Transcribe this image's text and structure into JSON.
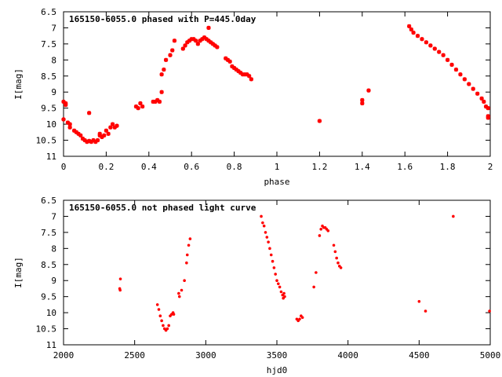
{
  "colors": {
    "series": "#ff0000",
    "axis": "#000000",
    "background": "#ffffff"
  },
  "chart_data": [
    {
      "type": "scatter",
      "title": "165150-6055.0 phased with P=445.0day",
      "xlabel": "phase",
      "ylabel": "I[mag]",
      "xlim": [
        0,
        2
      ],
      "ylim": [
        6.5,
        11
      ],
      "y_inverted": true,
      "x_ticks": [
        0,
        0.2,
        0.4,
        0.6,
        0.8,
        1,
        1.2,
        1.4,
        1.6,
        1.8,
        2
      ],
      "x_tick_labels": [
        "0",
        "0.2",
        "0.4",
        "0.6",
        "0.8",
        "1",
        "1.2",
        "1.4",
        "1.6",
        "1.8",
        "2"
      ],
      "y_ticks": [
        6.5,
        7,
        7.5,
        8,
        8.5,
        9,
        9.5,
        10,
        10.5,
        11
      ],
      "y_tick_labels": [
        "6.5",
        "7",
        "7.5",
        "8",
        "8.5",
        "9",
        "9.5",
        "10",
        "10.5",
        "11"
      ],
      "grid": false,
      "marker": "star",
      "x": [
        0.0,
        0.0,
        0.01,
        0.01,
        0.02,
        0.03,
        0.03,
        0.05,
        0.06,
        0.07,
        0.08,
        0.09,
        0.1,
        0.11,
        0.12,
        0.13,
        0.14,
        0.15,
        0.16,
        0.17,
        0.17,
        0.18,
        0.19,
        0.2,
        0.21,
        0.22,
        0.23,
        0.24,
        0.25,
        0.12,
        0.34,
        0.35,
        0.36,
        0.37,
        0.42,
        0.43,
        0.44,
        0.45,
        0.46,
        0.46,
        0.47,
        0.48,
        0.5,
        0.51,
        0.52,
        0.56,
        0.57,
        0.58,
        0.59,
        0.6,
        0.61,
        0.62,
        0.63,
        0.64,
        0.65,
        0.66,
        0.67,
        0.68,
        0.69,
        0.7,
        0.71,
        0.72,
        0.68,
        0.76,
        0.77,
        0.78,
        0.79,
        0.8,
        0.81,
        0.82,
        0.83,
        0.84,
        0.85,
        0.86,
        0.87,
        0.88,
        1.2,
        1.4,
        1.4,
        1.43,
        1.62,
        1.63,
        1.64,
        1.66,
        1.68,
        1.7,
        1.72,
        1.74,
        1.76,
        1.78,
        1.8,
        1.82,
        1.84,
        1.86,
        1.88,
        1.9,
        1.92,
        1.94,
        1.96,
        1.97,
        1.98,
        1.99,
        1.99,
        1.99
      ],
      "y": [
        9.3,
        9.85,
        9.35,
        9.4,
        9.95,
        10.0,
        10.1,
        10.2,
        10.25,
        10.3,
        10.35,
        10.45,
        10.5,
        10.55,
        10.52,
        10.55,
        10.5,
        10.55,
        10.5,
        10.35,
        10.3,
        10.4,
        10.35,
        10.2,
        10.3,
        10.1,
        10.0,
        10.1,
        10.05,
        9.65,
        9.45,
        9.5,
        9.35,
        9.45,
        9.3,
        9.3,
        9.25,
        9.3,
        8.45,
        9.0,
        8.3,
        8.0,
        7.85,
        7.7,
        7.4,
        7.65,
        7.55,
        7.45,
        7.4,
        7.35,
        7.35,
        7.4,
        7.5,
        7.4,
        7.35,
        7.3,
        7.35,
        7.4,
        7.45,
        7.5,
        7.55,
        7.6,
        7.0,
        7.95,
        8.0,
        8.05,
        8.2,
        8.25,
        8.3,
        8.35,
        8.4,
        8.45,
        8.45,
        8.45,
        8.5,
        8.6,
        9.9,
        9.25,
        9.35,
        8.95,
        6.95,
        7.05,
        7.15,
        7.25,
        7.35,
        7.45,
        7.55,
        7.65,
        7.75,
        7.85,
        8.0,
        8.15,
        8.3,
        8.45,
        8.6,
        8.75,
        8.9,
        9.05,
        9.2,
        9.3,
        9.45,
        9.5,
        9.75,
        9.8
      ]
    },
    {
      "type": "scatter",
      "title": "165150-6055.0 not phased light curve",
      "xlabel": "hjd0",
      "ylabel": "I[mag]",
      "xlim": [
        2000,
        5000
      ],
      "ylim": [
        6.5,
        11
      ],
      "y_inverted": true,
      "x_ticks": [
        2000,
        2500,
        3000,
        3500,
        4000,
        4500,
        5000
      ],
      "x_tick_labels": [
        "2000",
        "2500",
        "3000",
        "3500",
        "4000",
        "4500",
        "5000"
      ],
      "y_ticks": [
        6.5,
        7,
        7.5,
        8,
        8.5,
        9,
        9.5,
        10,
        10.5,
        11
      ],
      "y_tick_labels": [
        "6.5",
        "7",
        "7.5",
        "8",
        "8.5",
        "9",
        "9.5",
        "10",
        "10.5",
        "11"
      ],
      "grid": false,
      "marker": "dot",
      "x": [
        2395,
        2398,
        2400,
        2660,
        2670,
        2680,
        2690,
        2700,
        2710,
        2720,
        2730,
        2740,
        2750,
        2760,
        2770,
        2775,
        2810,
        2815,
        2830,
        2850,
        2865,
        2870,
        2880,
        2890,
        3390,
        3400,
        3410,
        3420,
        3430,
        3440,
        3450,
        3460,
        3470,
        3480,
        3490,
        3500,
        3510,
        3520,
        3530,
        3540,
        3545,
        3550,
        3555,
        3640,
        3650,
        3660,
        3670,
        3680,
        3760,
        3775,
        3800,
        3810,
        3820,
        3830,
        3840,
        3850,
        3860,
        3900,
        3910,
        3920,
        3930,
        3940,
        3950,
        4500,
        4545,
        4740,
        4995
      ],
      "y": [
        9.25,
        9.3,
        8.95,
        9.75,
        9.9,
        10.1,
        10.25,
        10.4,
        10.5,
        10.55,
        10.5,
        10.4,
        10.1,
        10.05,
        10.0,
        10.05,
        9.4,
        9.5,
        9.3,
        9.0,
        8.45,
        8.2,
        7.9,
        7.7,
        7.0,
        7.2,
        7.3,
        7.5,
        7.65,
        7.8,
        8.0,
        8.2,
        8.4,
        8.6,
        8.8,
        9.0,
        9.1,
        9.2,
        9.35,
        9.45,
        9.55,
        9.4,
        9.5,
        10.2,
        10.25,
        10.2,
        10.1,
        10.15,
        9.2,
        8.75,
        7.6,
        7.4,
        7.3,
        7.35,
        7.35,
        7.4,
        7.45,
        7.9,
        8.1,
        8.3,
        8.45,
        8.55,
        8.6,
        9.65,
        9.95,
        7.0,
        9.95
      ]
    }
  ]
}
